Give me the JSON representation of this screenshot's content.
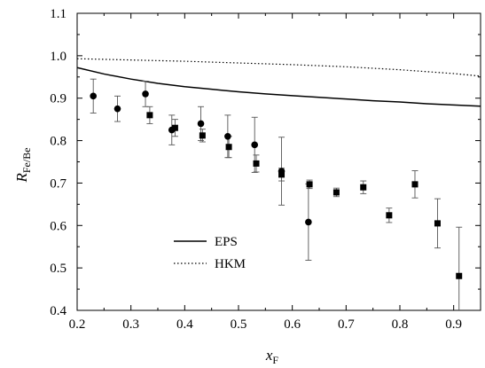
{
  "chart_data": {
    "type": "scatter",
    "xlabel": "x",
    "xlabel_sub": "F",
    "ylabel": "R",
    "ylabel_sub": "Fe/Be",
    "xlim": [
      0.2,
      0.95
    ],
    "ylim": [
      0.4,
      1.1
    ],
    "xticks": [
      "0.2",
      "0.3",
      "0.4",
      "0.5",
      "0.6",
      "0.7",
      "0.8",
      "0.9"
    ],
    "yticks": [
      "0.4",
      "0.5",
      "0.6",
      "0.7",
      "0.8",
      "0.9",
      "1.0",
      "1.1"
    ],
    "legend_position": "bottom-left",
    "grid": false,
    "series": [
      {
        "name": "",
        "marker": "circle",
        "points": [
          {
            "x": 0.23,
            "y": 0.905,
            "err": 0.04
          },
          {
            "x": 0.275,
            "y": 0.875,
            "err": 0.03
          },
          {
            "x": 0.327,
            "y": 0.91,
            "err": 0.03
          },
          {
            "x": 0.376,
            "y": 0.825,
            "err": 0.035
          },
          {
            "x": 0.43,
            "y": 0.84,
            "err": 0.04
          },
          {
            "x": 0.48,
            "y": 0.81,
            "err": 0.05
          },
          {
            "x": 0.53,
            "y": 0.79,
            "err": 0.065
          },
          {
            "x": 0.58,
            "y": 0.728,
            "err": 0.08
          },
          {
            "x": 0.63,
            "y": 0.608,
            "err": 0.09
          }
        ]
      },
      {
        "name": "",
        "marker": "square",
        "points": [
          {
            "x": 0.335,
            "y": 0.86,
            "err": 0.02
          },
          {
            "x": 0.382,
            "y": 0.83,
            "err": 0.02
          },
          {
            "x": 0.433,
            "y": 0.812,
            "err": 0.015
          },
          {
            "x": 0.482,
            "y": 0.785,
            "err": 0.025
          },
          {
            "x": 0.533,
            "y": 0.746,
            "err": 0.02
          },
          {
            "x": 0.58,
            "y": 0.72,
            "err": 0.015
          },
          {
            "x": 0.632,
            "y": 0.697,
            "err": 0.01
          },
          {
            "x": 0.682,
            "y": 0.678,
            "err": 0.01
          },
          {
            "x": 0.732,
            "y": 0.69,
            "err": 0.015
          },
          {
            "x": 0.78,
            "y": 0.624,
            "err": 0.017
          },
          {
            "x": 0.828,
            "y": 0.697,
            "err": 0.032
          },
          {
            "x": 0.87,
            "y": 0.605,
            "err": 0.058
          },
          {
            "x": 0.91,
            "y": 0.481,
            "err": 0.115
          }
        ]
      },
      {
        "name": "EPS",
        "style": "solid",
        "x": [
          0.2,
          0.25,
          0.3,
          0.35,
          0.4,
          0.45,
          0.5,
          0.55,
          0.6,
          0.65,
          0.7,
          0.75,
          0.8,
          0.85,
          0.9,
          0.95
        ],
        "y": [
          0.972,
          0.957,
          0.945,
          0.935,
          0.927,
          0.921,
          0.915,
          0.91,
          0.906,
          0.902,
          0.898,
          0.894,
          0.891,
          0.887,
          0.884,
          0.881
        ]
      },
      {
        "name": "HKM",
        "style": "dotted",
        "x": [
          0.2,
          0.3,
          0.4,
          0.5,
          0.6,
          0.7,
          0.8,
          0.9,
          0.95
        ],
        "y": [
          0.993,
          0.99,
          0.987,
          0.983,
          0.979,
          0.974,
          0.967,
          0.958,
          0.952
        ]
      }
    ]
  }
}
